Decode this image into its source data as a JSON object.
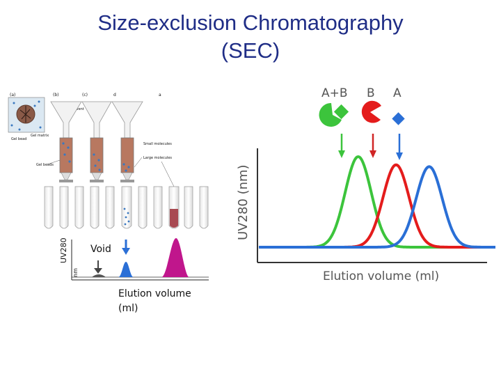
{
  "slide": {
    "title_line1": "Size-exclusion Chromatography",
    "title_line2": "(SEC)"
  },
  "left_panel": {
    "void_label": "Void",
    "y_axis_label": "UV280",
    "y_axis_unit": "nm",
    "x_axis_label_line1": "Elution volume",
    "x_axis_label_line2": "(ml)",
    "panel_letters": [
      "(a)",
      "(b)",
      "(c)",
      "d"
    ],
    "small_labels": {
      "solvent": "Solvent",
      "gel_bead": "Gel bead",
      "gel_matrix": "Gel matrix",
      "gel_beads": "Gel beads",
      "small_molecules": "Small molecules",
      "large_molecules": "Large molecules"
    },
    "colors": {
      "void_peak": "#555555",
      "mid_peak": "#2b6fd6",
      "late_peak": "#c0168c"
    }
  },
  "right_panel": {
    "y_axis_label": "UV280 (nm)",
    "x_axis_label": "Elution volume (ml)",
    "legend": [
      {
        "label": "A+B",
        "shape": "circle-with-notch-and-diamond",
        "color": "#3cc43c"
      },
      {
        "label": "B",
        "shape": "pacman",
        "color": "#e41c1c"
      },
      {
        "label": "A",
        "shape": "diamond",
        "color": "#2a6fd6"
      }
    ]
  },
  "chart_data": {
    "type": "line",
    "title": "",
    "xlabel": "Elution volume (ml)",
    "ylabel": "UV280 (nm)",
    "grid": false,
    "legend_position": "top-right",
    "series": [
      {
        "name": "A+B",
        "color": "#3cc43c",
        "peak_x": 0.42,
        "peak_height": 1.0,
        "width": 0.055
      },
      {
        "name": "B",
        "color": "#e41c1c",
        "peak_x": 0.58,
        "peak_height": 0.91,
        "width": 0.055
      },
      {
        "name": "A",
        "color": "#2a6fd6",
        "peak_x": 0.72,
        "peak_height": 0.89,
        "width": 0.055
      }
    ],
    "xlim": [
      0,
      1
    ],
    "ylim": [
      0,
      1.1
    ]
  }
}
